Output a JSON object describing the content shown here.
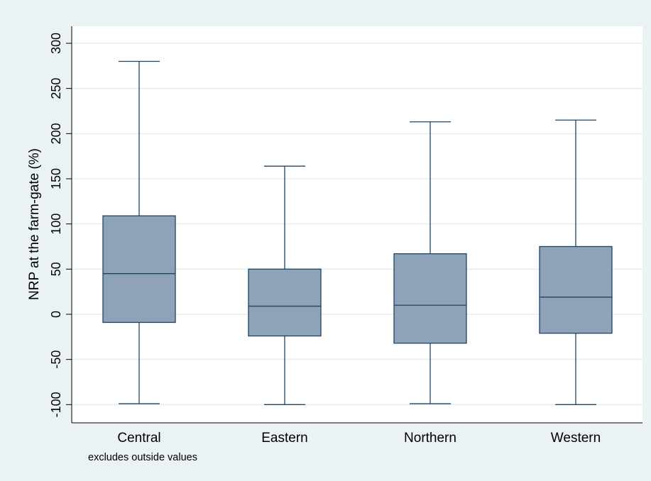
{
  "chart_data": {
    "type": "box",
    "ylabel": "NRP at the farm-gate (%)",
    "note": "excludes outside values",
    "ylim": [
      -115,
      320
    ],
    "yticks": [
      -100,
      -50,
      0,
      50,
      100,
      150,
      200,
      250,
      300
    ],
    "grid": true,
    "categories": [
      "Central",
      "Eastern",
      "Northern",
      "Western"
    ],
    "boxes": [
      {
        "category": "Central",
        "whisker_low": -99,
        "q1": -9,
        "median": 45,
        "q3": 109,
        "whisker_high": 280
      },
      {
        "category": "Eastern",
        "whisker_low": -100,
        "q1": -24,
        "median": 9,
        "q3": 50,
        "whisker_high": 164
      },
      {
        "category": "Northern",
        "whisker_low": -99,
        "q1": -32,
        "median": 10,
        "q3": 67,
        "whisker_high": 213
      },
      {
        "category": "Western",
        "whisker_low": -100,
        "q1": -21,
        "median": 19,
        "q3": 75,
        "whisker_high": 215
      }
    ],
    "colors": {
      "box_fill": "#8ea3b7",
      "box_stroke": "#1c4466",
      "grid": "#e8eded",
      "plot_bg": "#ffffff",
      "page_bg": "#eaf2f3"
    }
  }
}
